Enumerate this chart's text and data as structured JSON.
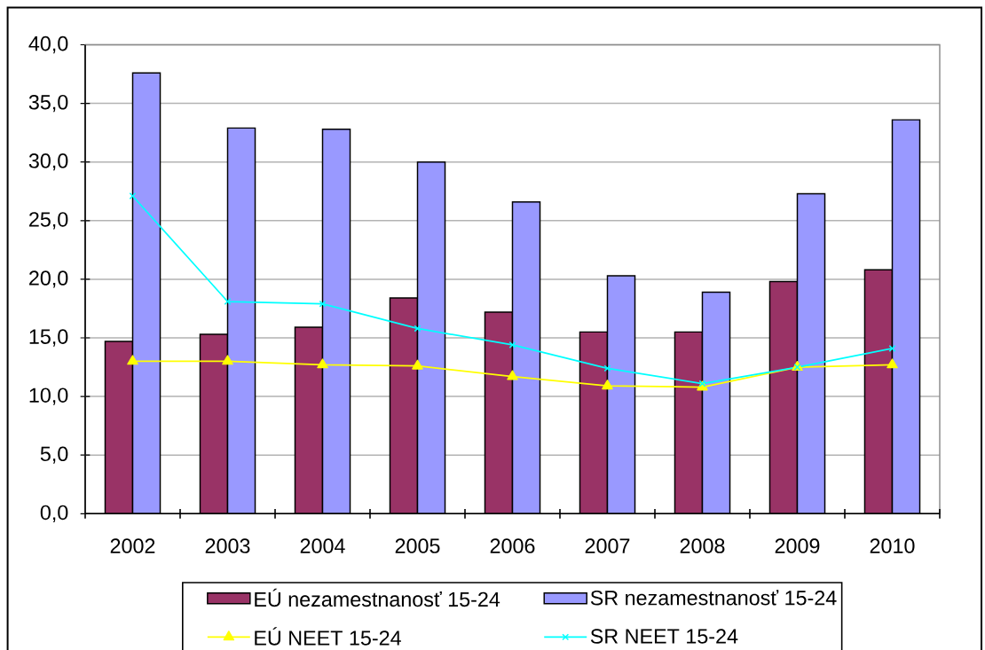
{
  "chart_data": {
    "type": "bar",
    "categories": [
      "2002",
      "2003",
      "2004",
      "2005",
      "2006",
      "2007",
      "2008",
      "2009",
      "2010"
    ],
    "series": [
      {
        "name": "EÚ nezamestnanosť 15-24",
        "color": "#993366",
        "values": [
          14.7,
          15.3,
          15.9,
          18.4,
          17.2,
          15.5,
          15.5,
          19.8,
          20.8
        ]
      },
      {
        "name": "SR nezamestnanosť 15-24",
        "color": "#9999ff",
        "values": [
          37.6,
          32.9,
          32.8,
          30.0,
          26.6,
          20.3,
          18.9,
          27.3,
          33.6
        ]
      },
      {
        "name": "EÚ NEET 15-24",
        "type": "line",
        "color": "#ffff00",
        "marker": "triangle",
        "values": [
          13.0,
          13.0,
          12.7,
          12.6,
          11.7,
          10.9,
          10.8,
          12.5,
          12.7
        ]
      },
      {
        "name": "SR NEET 15-24",
        "type": "line",
        "color": "#00ffff",
        "marker": "cross",
        "values": [
          27.1,
          18.1,
          17.9,
          15.8,
          14.4,
          12.4,
          11.1,
          12.5,
          14.1
        ]
      }
    ],
    "ylim": [
      0,
      40
    ],
    "yticks": [
      {
        "value": 0,
        "label": "0,0"
      },
      {
        "value": 5,
        "label": "5,0"
      },
      {
        "value": 10,
        "label": "10,0"
      },
      {
        "value": 15,
        "label": "15,0"
      },
      {
        "value": 20,
        "label": "20,0"
      },
      {
        "value": 25,
        "label": "25,0"
      },
      {
        "value": 30,
        "label": "30,0"
      },
      {
        "value": 35,
        "label": "35,0"
      },
      {
        "value": 40,
        "label": "40,0"
      }
    ],
    "grid": "y",
    "legend": "bottom"
  }
}
